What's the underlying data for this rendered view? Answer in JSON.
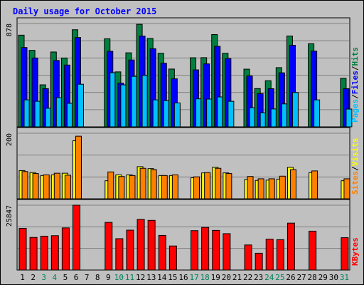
{
  "chart_data": {
    "title": "Daily usage for October 2015",
    "type": "bar",
    "days": [
      "1",
      "2",
      "3",
      "4",
      "5",
      "6",
      "7",
      "8",
      "9",
      "10",
      "11",
      "12",
      "13",
      "14",
      "15",
      "16",
      "17",
      "18",
      "19",
      "20",
      "21",
      "22",
      "23",
      "24",
      "25",
      "26",
      "27",
      "28",
      "29",
      "30",
      "31"
    ],
    "weekend_days": [
      "3",
      "4",
      "10",
      "11",
      "17",
      "18",
      "24",
      "25",
      "31"
    ],
    "panels": [
      {
        "id": "hits",
        "max_label": "878",
        "ymax": 878,
        "legend": [
          "Pages",
          "Files",
          "Hits"
        ],
        "series": [
          {
            "name": "Hits",
            "color": "#008040",
            "values": [
              779,
              650,
              357,
              636,
              585,
              825,
              0,
              0,
              748,
              467,
              629,
              871,
              751,
              625,
              491,
              0,
              587,
              588,
              784,
              625,
              0,
              490,
              325,
              392,
              503,
              772,
              0,
              706,
              0,
              0,
              412
            ]
          },
          {
            "name": "Files",
            "color": "#0000ff",
            "values": [
              674,
              585,
              324,
              564,
              525,
              759,
              0,
              0,
              642,
              371,
              568,
              771,
              664,
              541,
              408,
              0,
              484,
              535,
              684,
              580,
              0,
              432,
              282,
              324,
              459,
              693,
              0,
              643,
              0,
              0,
              324
            ]
          },
          {
            "name": "Pages",
            "color": "#00c0ff",
            "values": [
              229,
              217,
              158,
              248,
              200,
              362,
              0,
              0,
              460,
              357,
              429,
              437,
              229,
              223,
              203,
              0,
              238,
              236,
              254,
              217,
              0,
              162,
              119,
              152,
              195,
              292,
              0,
              229,
              0,
              0,
              151
            ]
          }
        ]
      },
      {
        "id": "visits",
        "max_label": "200",
        "ymax": 200,
        "legend": [
          "Sites",
          "Visits"
        ],
        "series": [
          {
            "name": "Visits",
            "color": "#ffff00",
            "values": [
              86,
              80,
              71,
              73,
              78,
              177,
              0,
              0,
              55,
              73,
              73,
              98,
              92,
              71,
              71,
              0,
              64,
              79,
              96,
              79,
              0,
              59,
              56,
              57,
              60,
              96,
              0,
              80,
              0,
              0,
              55
            ]
          },
          {
            "name": "Sites",
            "color": "#ff8000",
            "values": [
              83,
              77,
              73,
              78,
              72,
              191,
              0,
              0,
              82,
              68,
              71,
              93,
              89,
              71,
              73,
              0,
              67,
              80,
              93,
              77,
              0,
              68,
              61,
              61,
              69,
              89,
              0,
              85,
              0,
              0,
              61
            ]
          }
        ]
      },
      {
        "id": "kbytes",
        "max_label": "25847",
        "ymax": 25847,
        "legend": [
          "KBytes"
        ],
        "series": [
          {
            "name": "KBytes",
            "color": "#ff0000",
            "values": [
              16600,
              13000,
              13500,
              13700,
              16800,
              25847,
              0,
              0,
              19000,
              12500,
              15900,
              20200,
              19800,
              13800,
              9600,
              0,
              15700,
              17000,
              15800,
              14500,
              0,
              10000,
              6700,
              12300,
              12100,
              18700,
              0,
              15500,
              0,
              0,
              12900
            ]
          }
        ]
      }
    ],
    "colors": {
      "background": "#c0c0c0",
      "title": "#0000ff",
      "weekday_label": "#000000",
      "weekend_label": "#00805c",
      "grid": "#808080",
      "bar_outline": "#000000"
    }
  }
}
